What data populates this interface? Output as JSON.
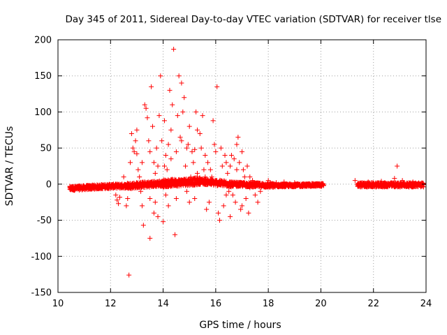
{
  "chart_data": {
    "type": "scatter",
    "title": "Day 345 of 2011, Sidereal Day-to-day VTEC variation (SDTVAR) for receiver tlse",
    "xlabel": "GPS time / hours",
    "ylabel": "SDTVAR / TECUs",
    "xlim": [
      10,
      24
    ],
    "ylim": [
      -150,
      200
    ],
    "xticks": [
      10,
      12,
      14,
      16,
      18,
      20,
      22,
      24
    ],
    "yticks": [
      -150,
      -100,
      -50,
      0,
      50,
      100,
      150,
      200
    ],
    "xtick_labels": [
      "10",
      "12",
      "14",
      "16",
      "18",
      "20",
      "22",
      "24"
    ],
    "ytick_labels": [
      "-150",
      "-100",
      "-50",
      "0",
      "50",
      "100",
      "150",
      "200"
    ],
    "grid": true,
    "marker": "+",
    "marker_color": "#ff0000",
    "series": [
      {
        "name": "SDTVAR",
        "dense_band_segments": [
          {
            "x": [
              10.45,
              11.9
            ],
            "y_center": [
              -6,
              -3
            ],
            "spread": 3
          },
          {
            "x": [
              11.9,
              12.6
            ],
            "y_center": [
              -3,
              -2.5
            ],
            "spread": 3
          },
          {
            "x": [
              12.6,
              14.0
            ],
            "y_center": [
              -2.5,
              1
            ],
            "spread": 4
          },
          {
            "x": [
              14.0,
              15.4
            ],
            "y_center": [
              1,
              4
            ],
            "spread": 5
          },
          {
            "x": [
              15.4,
              16.6
            ],
            "y_center": [
              4,
              0
            ],
            "spread": 4
          },
          {
            "x": [
              16.6,
              18.2
            ],
            "y_center": [
              0,
              -2
            ],
            "spread": 3
          },
          {
            "x": [
              18.2,
              20.1
            ],
            "y_center": [
              -2,
              -1
            ],
            "spread": 2
          },
          {
            "x": [
              21.4,
              23.9
            ],
            "y_center": [
              -1,
              -1
            ],
            "spread": 3
          }
        ],
        "points": [
          [
            12.2,
            -15
          ],
          [
            12.25,
            -22
          ],
          [
            12.3,
            -27
          ],
          [
            12.35,
            -18
          ],
          [
            12.6,
            -30
          ],
          [
            12.65,
            -20
          ],
          [
            12.7,
            -126
          ],
          [
            12.8,
            70
          ],
          [
            12.85,
            50
          ],
          [
            12.9,
            45
          ],
          [
            12.95,
            60
          ],
          [
            13.0,
            42
          ],
          [
            13.05,
            20
          ],
          [
            13.1,
            10
          ],
          [
            13.15,
            -10
          ],
          [
            13.2,
            -30
          ],
          [
            13.25,
            -57
          ],
          [
            13.3,
            110
          ],
          [
            13.35,
            105
          ],
          [
            13.4,
            92
          ],
          [
            13.45,
            60
          ],
          [
            13.5,
            45
          ],
          [
            13.55,
            135
          ],
          [
            13.6,
            80
          ],
          [
            13.65,
            30
          ],
          [
            13.7,
            -25
          ],
          [
            13.75,
            50
          ],
          [
            13.8,
            -45
          ],
          [
            13.85,
            95
          ],
          [
            13.9,
            150
          ],
          [
            13.95,
            60
          ],
          [
            14.0,
            -52
          ],
          [
            14.05,
            88
          ],
          [
            14.1,
            40
          ],
          [
            14.15,
            20
          ],
          [
            14.2,
            55
          ],
          [
            14.25,
            130
          ],
          [
            14.3,
            75
          ],
          [
            14.35,
            110
          ],
          [
            14.4,
            187
          ],
          [
            14.45,
            -70
          ],
          [
            14.5,
            45
          ],
          [
            14.55,
            95
          ],
          [
            14.6,
            150
          ],
          [
            14.65,
            65
          ],
          [
            14.7,
            140
          ],
          [
            14.75,
            100
          ],
          [
            14.8,
            120
          ],
          [
            14.85,
            25
          ],
          [
            14.9,
            -10
          ],
          [
            14.95,
            55
          ],
          [
            15.0,
            80
          ],
          [
            15.05,
            10
          ],
          [
            15.1,
            45
          ],
          [
            15.15,
            30
          ],
          [
            15.2,
            -20
          ],
          [
            15.25,
            100
          ],
          [
            15.3,
            75
          ],
          [
            15.4,
            70
          ],
          [
            15.45,
            50
          ],
          [
            15.5,
            95
          ],
          [
            15.55,
            20
          ],
          [
            15.6,
            40
          ],
          [
            15.65,
            -35
          ],
          [
            15.7,
            30
          ],
          [
            15.75,
            -25
          ],
          [
            15.8,
            20
          ],
          [
            15.85,
            10
          ],
          [
            15.9,
            88
          ],
          [
            15.95,
            55
          ],
          [
            16.0,
            45
          ],
          [
            16.05,
            135
          ],
          [
            16.1,
            -40
          ],
          [
            16.15,
            -50
          ],
          [
            16.2,
            50
          ],
          [
            16.25,
            25
          ],
          [
            16.3,
            -30
          ],
          [
            16.35,
            40
          ],
          [
            16.4,
            30
          ],
          [
            16.45,
            15
          ],
          [
            16.5,
            -10
          ],
          [
            16.55,
            25
          ],
          [
            16.6,
            40
          ],
          [
            16.65,
            -15
          ],
          [
            16.7,
            35
          ],
          [
            16.75,
            -25
          ],
          [
            16.8,
            55
          ],
          [
            16.85,
            65
          ],
          [
            16.9,
            30
          ],
          [
            16.95,
            -35
          ],
          [
            17.0,
            45
          ],
          [
            17.05,
            20
          ],
          [
            17.1,
            10
          ],
          [
            17.15,
            -20
          ],
          [
            17.2,
            25
          ],
          [
            17.3,
            10
          ],
          [
            17.4,
            5
          ],
          [
            17.5,
            -15
          ],
          [
            17.6,
            -25
          ],
          [
            17.7,
            -10
          ],
          [
            12.5,
            10
          ],
          [
            12.55,
            -5
          ],
          [
            13.5,
            -20
          ],
          [
            13.5,
            -75
          ],
          [
            13.7,
            15
          ],
          [
            13.8,
            25
          ],
          [
            14.1,
            -15
          ],
          [
            14.2,
            -30
          ],
          [
            14.3,
            35
          ],
          [
            14.5,
            -20
          ],
          [
            14.9,
            50
          ],
          [
            15.0,
            -25
          ],
          [
            15.3,
            15
          ],
          [
            15.6,
            10
          ],
          [
            16.8,
            20
          ],
          [
            17.0,
            -30
          ],
          [
            17.3,
            -5
          ],
          [
            18.0,
            5
          ],
          [
            18.3,
            2
          ],
          [
            18.6,
            3
          ],
          [
            19.0,
            2
          ],
          [
            21.3,
            5
          ],
          [
            21.8,
            3
          ],
          [
            22.3,
            4
          ],
          [
            22.8,
            8
          ],
          [
            22.9,
            25
          ],
          [
            23.1,
            5
          ],
          [
            23.5,
            3
          ],
          [
            13.2,
            30
          ],
          [
            13.0,
            75
          ],
          [
            14.7,
            60
          ],
          [
            15.2,
            48
          ],
          [
            16.4,
            -15
          ],
          [
            17.25,
            -40
          ],
          [
            16.55,
            -45
          ],
          [
            14.05,
            25
          ],
          [
            13.65,
            -40
          ],
          [
            12.75,
            30
          ]
        ]
      }
    ]
  }
}
